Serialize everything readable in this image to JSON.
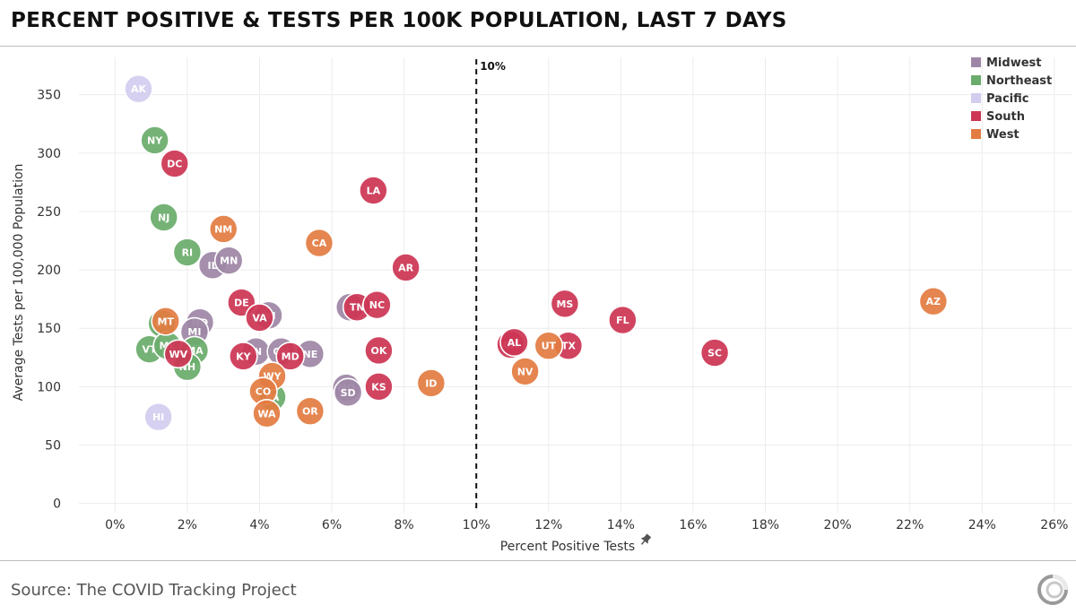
{
  "header": {
    "title": "PERCENT POSITIVE & TESTS PER 100K POPULATION, LAST 7 DAYS"
  },
  "footer": {
    "source": "Source: The COVID Tracking Project"
  },
  "chart_data": {
    "type": "scatter",
    "title": "PERCENT POSITIVE & TESTS PER 100K POPULATION, LAST 7 DAYS",
    "xlabel": "Percent Positive Tests",
    "ylabel": "Average Tests per 100,000 Population",
    "xlim": [
      -1,
      26.5
    ],
    "ylim": [
      -8,
      382
    ],
    "x_ticks": [
      0,
      2,
      4,
      6,
      8,
      10,
      12,
      14,
      16,
      18,
      20,
      22,
      24,
      26
    ],
    "x_tick_labels": [
      "0%",
      "2%",
      "4%",
      "6%",
      "8%",
      "10%",
      "12%",
      "14%",
      "16%",
      "18%",
      "20%",
      "22%",
      "24%",
      "26%"
    ],
    "y_ticks": [
      0,
      50,
      100,
      150,
      200,
      250,
      300,
      350
    ],
    "y_tick_labels": [
      "0",
      "50",
      "100",
      "150",
      "200",
      "250",
      "300",
      "350"
    ],
    "grid": true,
    "legend_position": "top-right",
    "reference_line": {
      "x": 10,
      "label": "10%"
    },
    "series": [
      {
        "name": "Midwest",
        "color": "#9e87a6",
        "points": [
          {
            "label": "IL",
            "x": 2.7,
            "y": 204
          },
          {
            "label": "MN",
            "x": 3.15,
            "y": 208
          },
          {
            "label": "ND",
            "x": 2.35,
            "y": 155
          },
          {
            "label": "MI",
            "x": 2.2,
            "y": 147
          },
          {
            "label": "IN",
            "x": 3.9,
            "y": 130
          },
          {
            "label": "WI",
            "x": 4.25,
            "y": 161
          },
          {
            "label": "OH",
            "x": 4.6,
            "y": 130
          },
          {
            "label": "NE",
            "x": 5.4,
            "y": 128
          },
          {
            "label": "IA",
            "x": 6.5,
            "y": 168
          },
          {
            "label": "MO",
            "x": 6.4,
            "y": 99
          },
          {
            "label": "SD",
            "x": 6.45,
            "y": 95
          }
        ]
      },
      {
        "name": "Northeast",
        "color": "#6aac6c",
        "points": [
          {
            "label": "NY",
            "x": 1.1,
            "y": 311
          },
          {
            "label": "NJ",
            "x": 1.35,
            "y": 245
          },
          {
            "label": "RI",
            "x": 2.0,
            "y": 215
          },
          {
            "label": "CT",
            "x": 1.3,
            "y": 154
          },
          {
            "label": "VT",
            "x": 0.95,
            "y": 132
          },
          {
            "label": "ME",
            "x": 1.45,
            "y": 135
          },
          {
            "label": "MA",
            "x": 2.2,
            "y": 131
          },
          {
            "label": "NH",
            "x": 2.0,
            "y": 117
          },
          {
            "label": "PA",
            "x": 4.35,
            "y": 91
          }
        ]
      },
      {
        "name": "Pacific",
        "color": "#d3cdef",
        "points": [
          {
            "label": "AK",
            "x": 0.65,
            "y": 355
          },
          {
            "label": "HI",
            "x": 1.2,
            "y": 74
          }
        ]
      },
      {
        "name": "South",
        "color": "#cc3654",
        "points": [
          {
            "label": "DC",
            "x": 1.65,
            "y": 291
          },
          {
            "label": "LA",
            "x": 7.15,
            "y": 268
          },
          {
            "label": "AR",
            "x": 8.05,
            "y": 202
          },
          {
            "label": "DE",
            "x": 3.5,
            "y": 172
          },
          {
            "label": "VA",
            "x": 4.0,
            "y": 159
          },
          {
            "label": "TN",
            "x": 6.7,
            "y": 168
          },
          {
            "label": "NC",
            "x": 7.25,
            "y": 170
          },
          {
            "label": "WV",
            "x": 1.75,
            "y": 128
          },
          {
            "label": "KY",
            "x": 3.55,
            "y": 126
          },
          {
            "label": "MD",
            "x": 4.85,
            "y": 126
          },
          {
            "label": "OK",
            "x": 7.3,
            "y": 131
          },
          {
            "label": "KS",
            "x": 7.3,
            "y": 100
          },
          {
            "label": "GA",
            "x": 10.95,
            "y": 136
          },
          {
            "label": "AL",
            "x": 11.05,
            "y": 138
          },
          {
            "label": "MS",
            "x": 12.45,
            "y": 171
          },
          {
            "label": "TX",
            "x": 12.55,
            "y": 135
          },
          {
            "label": "FL",
            "x": 14.05,
            "y": 157
          },
          {
            "label": "SC",
            "x": 16.6,
            "y": 129
          }
        ]
      },
      {
        "name": "West",
        "color": "#e37c42",
        "points": [
          {
            "label": "NM",
            "x": 3.0,
            "y": 235
          },
          {
            "label": "CA",
            "x": 5.65,
            "y": 223
          },
          {
            "label": "MT",
            "x": 1.4,
            "y": 156
          },
          {
            "label": "WY",
            "x": 4.35,
            "y": 109
          },
          {
            "label": "CO",
            "x": 4.1,
            "y": 96
          },
          {
            "label": "WA",
            "x": 4.2,
            "y": 77
          },
          {
            "label": "OR",
            "x": 5.4,
            "y": 79
          },
          {
            "label": "ID",
            "x": 8.75,
            "y": 103
          },
          {
            "label": "UT",
            "x": 12.0,
            "y": 135
          },
          {
            "label": "NV",
            "x": 11.35,
            "y": 113
          },
          {
            "label": "AZ",
            "x": 22.65,
            "y": 173
          }
        ]
      }
    ]
  }
}
